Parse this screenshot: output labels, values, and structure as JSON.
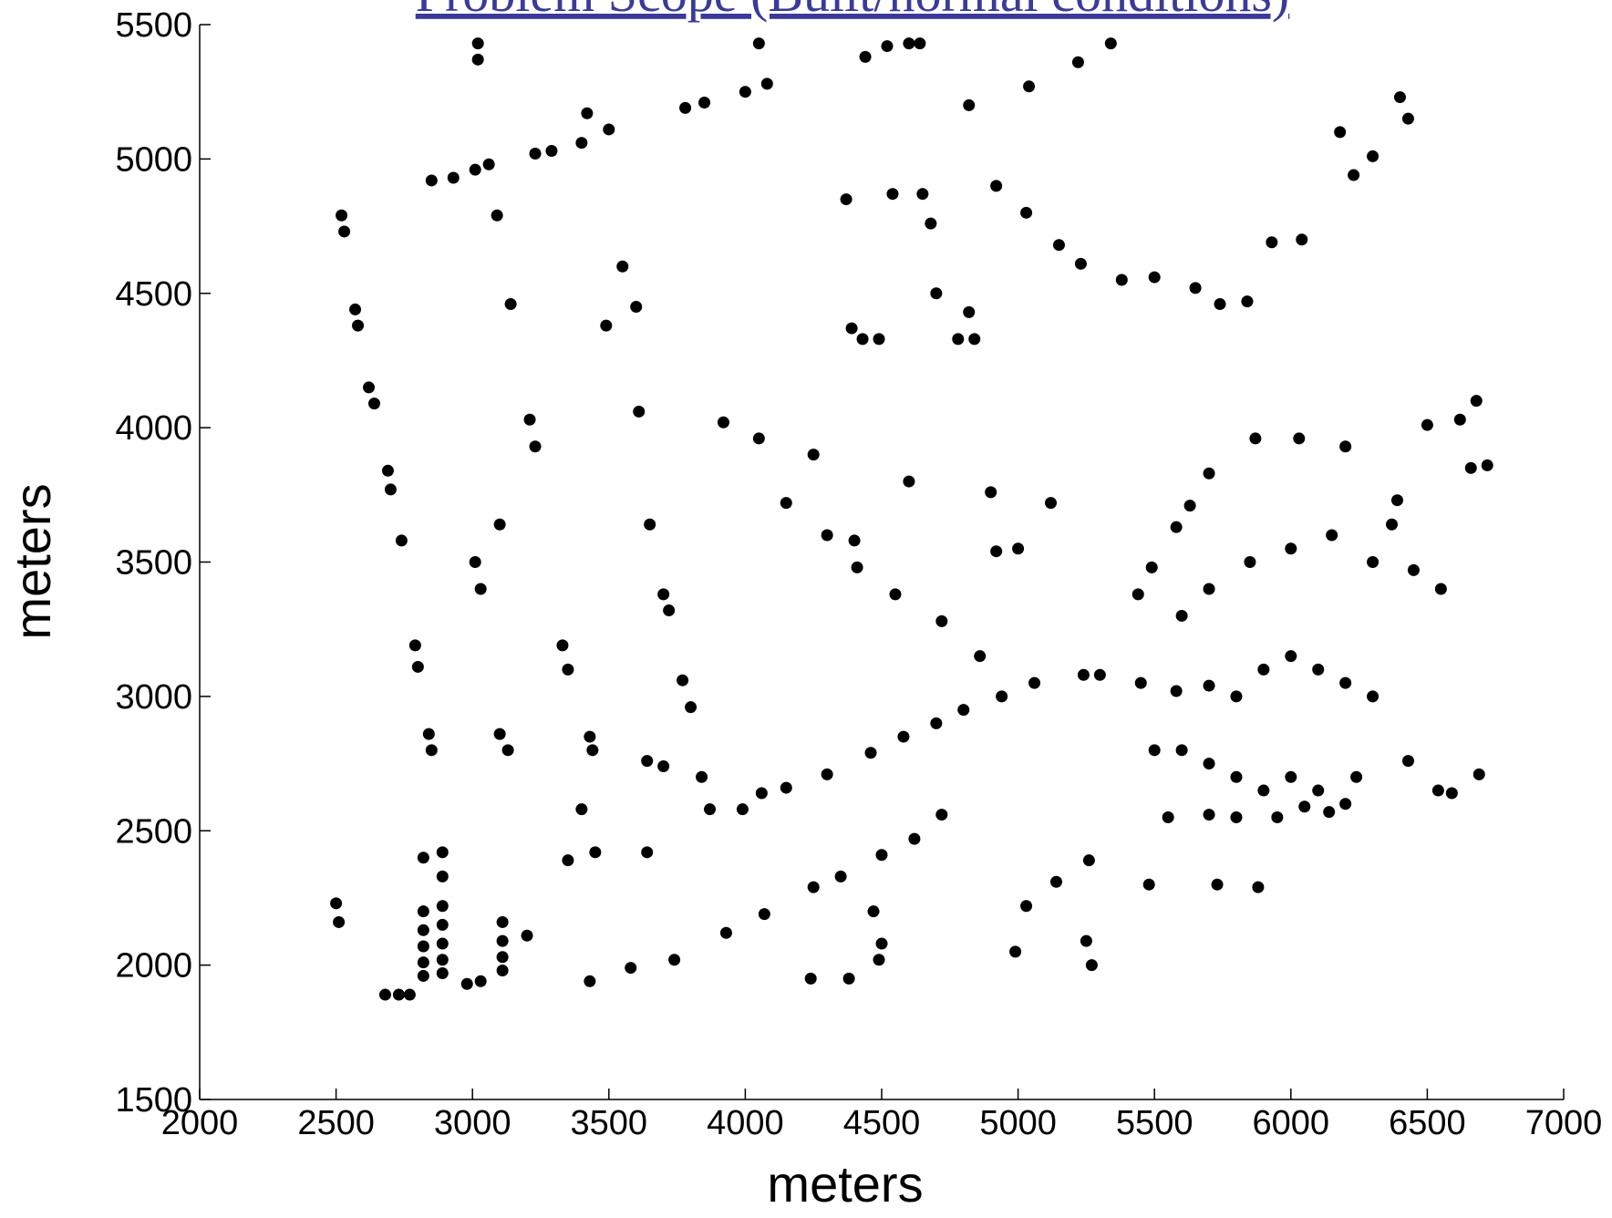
{
  "chart_data": {
    "type": "scatter",
    "title": "Problem Scope (Built/normal conditions)",
    "xlabel": "meters",
    "ylabel": "meters",
    "xlim": [
      2000,
      7000
    ],
    "ylim": [
      1500,
      5500
    ],
    "xticks": [
      2000,
      2500,
      3000,
      3500,
      4000,
      4500,
      5000,
      5500,
      6000,
      6500,
      7000
    ],
    "yticks": [
      1500,
      2000,
      2500,
      3000,
      3500,
      4000,
      4500,
      5000,
      5500
    ],
    "color": "#000000",
    "x": [
      3020,
      3020,
      2850,
      2930,
      3010,
      3060,
      3230,
      3290,
      3400,
      3500,
      3420,
      3780,
      3850,
      4000,
      4080,
      4050,
      4440,
      4520,
      4600,
      4640,
      5340,
      5220,
      5040,
      4820,
      2520,
      2530,
      2570,
      2580,
      2620,
      2640,
      2690,
      2700,
      2740,
      2790,
      2800,
      2840,
      2850,
      2820,
      2500,
      2510,
      3090,
      3140,
      3210,
      3230,
      3100,
      3010,
      3030,
      3100,
      3130,
      2890,
      2890,
      2820,
      2820,
      2820,
      2820,
      2820,
      2890,
      2890,
      2890,
      2890,
      2890,
      3110,
      3110,
      3110,
      3110,
      2730,
      2680,
      2770,
      2980,
      3030,
      3550,
      3600,
      3490,
      3610,
      3650,
      3700,
      3720,
      3770,
      3800,
      3840,
      3330,
      3350,
      3430,
      3440,
      3400,
      3450,
      3640,
      3700,
      3870,
      3990,
      4060,
      4150,
      4300,
      4460,
      4580,
      4700,
      4800,
      4940,
      5060,
      5240,
      5300,
      5440,
      5490,
      5580,
      5630,
      5700,
      5870,
      6030,
      6200,
      6500,
      6620,
      6680,
      6720,
      6660,
      6390,
      6370,
      6590,
      6690,
      6540,
      6430,
      6240,
      6140,
      5880,
      5730,
      5480,
      5260,
      5140,
      5030,
      4990,
      5250,
      5270,
      4720,
      4620,
      4500,
      4350,
      4250,
      4070,
      3930,
      3740,
      3580,
      3430,
      3200,
      3350,
      3640,
      4500,
      4490,
      4470,
      4380,
      4240,
      4150,
      4300,
      4400,
      4410,
      4550,
      4720,
      4860,
      4920,
      5000,
      5120,
      4900,
      4600,
      4250,
      4050,
      3920,
      4390,
      4430,
      4490,
      4780,
      4840,
      4820,
      4700,
      4680,
      4650,
      4540,
      4370,
      4920,
      5030,
      5150,
      5230,
      5380,
      5500,
      5650,
      5740,
      5840,
      5930,
      6040,
      6230,
      6300,
      6430,
      6400,
      6180,
      5450,
      5580,
      5700,
      5800,
      5900,
      6000,
      6100,
      6200,
      6300,
      5500,
      5600,
      5700,
      5800,
      5900,
      6000,
      6100,
      6200,
      5550,
      5700,
      5800,
      5950,
      6050,
      5600,
      5700,
      5850,
      6000,
      6150,
      6300,
      6450,
      6550
    ],
    "values": [
      5430,
      5370,
      4920,
      4930,
      4960,
      4980,
      5020,
      5030,
      5060,
      5110,
      5170,
      5190,
      5210,
      5250,
      5280,
      5430,
      5380,
      5420,
      5430,
      5430,
      5430,
      5360,
      5270,
      5200,
      4790,
      4730,
      4440,
      4380,
      4150,
      4090,
      3840,
      3770,
      3580,
      3190,
      3110,
      2860,
      2800,
      2400,
      2230,
      2160,
      4790,
      4460,
      4030,
      3930,
      3640,
      3500,
      3400,
      2860,
      2800,
      2420,
      2330,
      2200,
      2130,
      2070,
      2010,
      1960,
      2220,
      2150,
      2080,
      2020,
      1970,
      2160,
      2090,
      2030,
      1980,
      1890,
      1890,
      1890,
      1930,
      1940,
      4600,
      4450,
      4380,
      4060,
      3640,
      3380,
      3320,
      3060,
      2960,
      2700,
      3190,
      3100,
      2850,
      2800,
      2580,
      2420,
      2760,
      2740,
      2580,
      2580,
      2640,
      2660,
      2710,
      2790,
      2850,
      2900,
      2950,
      3000,
      3050,
      3080,
      3080,
      3380,
      3480,
      3630,
      3710,
      3830,
      3960,
      3960,
      3930,
      4010,
      4030,
      4100,
      3860,
      3850,
      3730,
      3640,
      2640,
      2710,
      2650,
      2760,
      2700,
      2570,
      2290,
      2300,
      2300,
      2390,
      2310,
      2220,
      2050,
      2090,
      2000,
      2560,
      2470,
      2410,
      2330,
      2290,
      2190,
      2120,
      2020,
      1990,
      1940,
      2110,
      2390,
      2420,
      2080,
      2020,
      2200,
      1950,
      1950,
      3720,
      3600,
      3580,
      3480,
      3380,
      3280,
      3150,
      3540,
      3550,
      3720,
      3760,
      3800,
      3900,
      3960,
      4020,
      4370,
      4330,
      4330,
      4330,
      4330,
      4430,
      4500,
      4760,
      4870,
      4870,
      4850,
      4900,
      4800,
      4680,
      4610,
      4550,
      4560,
      4520,
      4460,
      4470,
      4690,
      4700,
      4940,
      5010,
      5150,
      5230,
      5100,
      3050,
      3020,
      3040,
      3000,
      3100,
      3150,
      3100,
      3050,
      3000,
      2800,
      2800,
      2750,
      2700,
      2650,
      2700,
      2650,
      2600,
      2550,
      2560,
      2550,
      2550,
      2590,
      3300,
      3400,
      3500,
      3550,
      3600,
      3500,
      3470,
      3400
    ]
  }
}
